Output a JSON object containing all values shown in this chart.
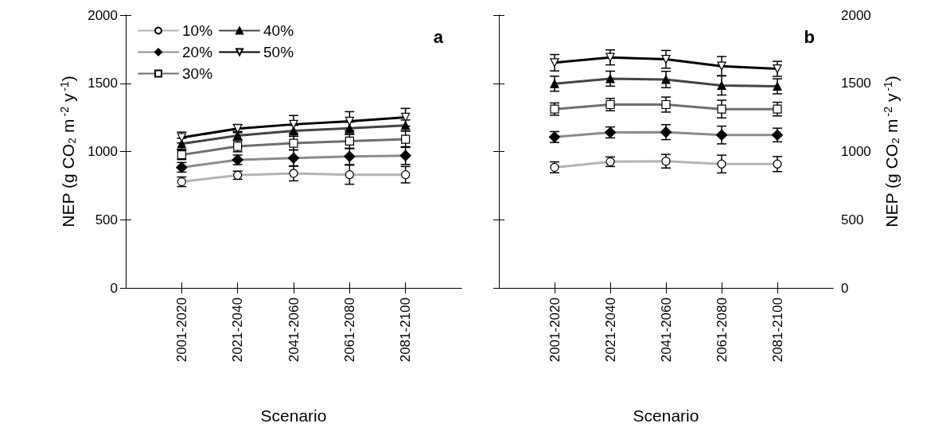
{
  "chart_data": [
    {
      "type": "line",
      "title": "a",
      "xlabel": "Scenario",
      "ylabel": "NEP (g CO₂ m$^{-2}$ y$^{-1}$)",
      "categories": [
        "2001-2020",
        "2021-2040",
        "2041-2060",
        "2061-2080",
        "2081-2100"
      ],
      "ylim": [
        0,
        2000
      ],
      "yticks": [
        0,
        500,
        1000,
        1500,
        2000
      ],
      "grid": false,
      "legend": "top left",
      "line_style": "solid",
      "series": [
        {
          "name": "10%",
          "color": "#b4b4b4",
          "marker": "circle",
          "values": [
            778,
            826,
            840,
            830,
            830
          ],
          "errors": [
            35,
            30,
            55,
            70,
            60
          ]
        },
        {
          "name": "20%",
          "color": "#8c8c8c",
          "marker": "diamond",
          "values": [
            884,
            939,
            952,
            964,
            970
          ],
          "errors": [
            35,
            35,
            60,
            60,
            65
          ]
        },
        {
          "name": "30%",
          "color": "#6e6e6e",
          "marker": "square",
          "values": [
            976,
            1038,
            1061,
            1076,
            1090
          ],
          "errors": [
            35,
            40,
            50,
            55,
            60
          ]
        },
        {
          "name": "40%",
          "color": "#444444",
          "marker": "triangle",
          "values": [
            1057,
            1117,
            1152,
            1170,
            1191
          ],
          "errors": [
            40,
            30,
            40,
            45,
            40
          ]
        },
        {
          "name": "50%",
          "color": "#000000",
          "marker": "triangle-down",
          "values": [
            1102,
            1168,
            1199,
            1222,
            1251
          ],
          "errors": [
            40,
            30,
            65,
            70,
            65
          ]
        }
      ]
    },
    {
      "type": "line",
      "title": "b",
      "xlabel": "Scenario",
      "ylabel": "NEP (g CO₂ m$^{-2}$ y$^{-1}$)",
      "categories": [
        "2001-2020",
        "2021-2040",
        "2041-2060",
        "2061-2080",
        "2081-2100"
      ],
      "ylim": [
        0,
        2000
      ],
      "yticks": [
        0,
        500,
        1000,
        1500,
        2000
      ],
      "grid": false,
      "legend": false,
      "line_style": "solid",
      "series": [
        {
          "color": "#b4b4b4",
          "marker": "circle",
          "values": [
            884,
            925,
            929,
            908,
            908
          ],
          "errors": [
            40,
            35,
            50,
            65,
            55
          ]
        },
        {
          "color": "#8c8c8c",
          "marker": "diamond",
          "values": [
            1106,
            1140,
            1142,
            1121,
            1121
          ],
          "errors": [
            40,
            40,
            55,
            65,
            50
          ]
        },
        {
          "color": "#6e6e6e",
          "marker": "square",
          "values": [
            1311,
            1344,
            1344,
            1311,
            1311
          ],
          "errors": [
            45,
            45,
            55,
            65,
            50
          ]
        },
        {
          "color": "#444444",
          "marker": "triangle",
          "values": [
            1497,
            1534,
            1528,
            1484,
            1478
          ],
          "errors": [
            55,
            55,
            60,
            70,
            55
          ]
        },
        {
          "color": "#000000",
          "marker": "triangle-down",
          "values": [
            1651,
            1690,
            1676,
            1626,
            1606
          ],
          "errors": [
            60,
            55,
            65,
            70,
            55
          ]
        }
      ]
    }
  ]
}
